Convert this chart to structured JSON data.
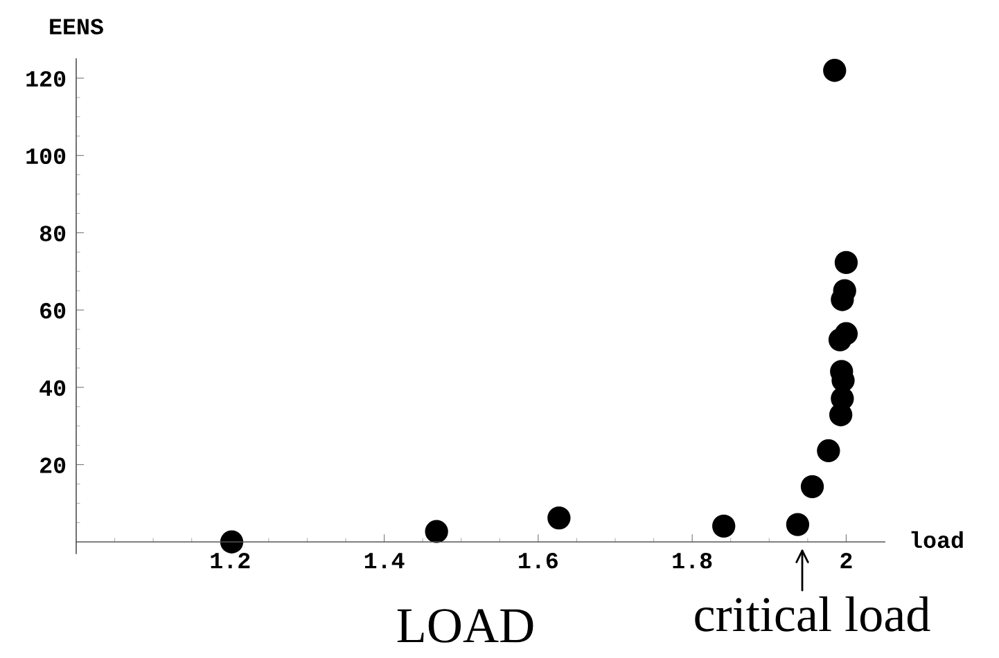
{
  "chart_data": {
    "type": "scatter",
    "xlabel": "load",
    "ylabel": "EENS",
    "x": [
      1.202,
      1.468,
      1.627,
      1.841,
      1.937,
      1.956,
      1.977,
      1.985,
      2.0,
      1.998,
      1.995,
      2.0,
      1.992,
      1.994,
      1.996,
      1.995,
      1.993
    ],
    "values": [
      0,
      2.7,
      6.2,
      4.1,
      4.5,
      14.3,
      23.6,
      122,
      72.3,
      65,
      62.7,
      53.9,
      52.3,
      44.1,
      41.8,
      37.1,
      32.9
    ],
    "color": "#000000",
    "marker": "circle",
    "xlim": [
      1.0,
      2.05
    ],
    "ylim": [
      -3,
      125
    ],
    "xticks": [
      1.2,
      1.4,
      1.6,
      1.8,
      {
        "value": 2.0,
        "label": "2"
      }
    ],
    "yticks": [
      20,
      40,
      60,
      80,
      100,
      120
    ],
    "grid": false,
    "annotations": [
      "LOAD",
      "critical load"
    ]
  }
}
